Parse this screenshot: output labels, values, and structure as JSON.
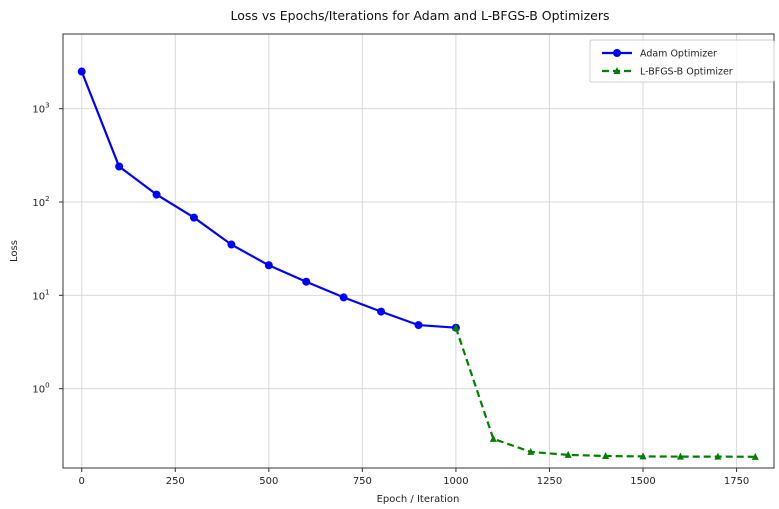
{
  "chart_data": {
    "type": "line",
    "title": "Loss vs Epochs/Iterations for Adam and L-BFGS-B Optimizers",
    "xlabel": "Epoch / Iteration",
    "ylabel": "Loss",
    "xlim": [
      -50,
      1850
    ],
    "ylim_log10": [
      -0.85,
      3.8
    ],
    "yscale": "log",
    "grid": true,
    "legend_position": "top-right",
    "x_ticks": [
      0,
      250,
      500,
      750,
      1000,
      1250,
      1500,
      1750
    ],
    "x_tick_labels": [
      "0",
      "250",
      "500",
      "750",
      "1000",
      "1250",
      "1500",
      "1750"
    ],
    "y_ticks_log10": [
      0,
      1,
      2,
      3
    ],
    "y_tick_labels": [
      {
        "base": "10",
        "exp": "0"
      },
      {
        "base": "10",
        "exp": "1"
      },
      {
        "base": "10",
        "exp": "2"
      },
      {
        "base": "10",
        "exp": "3"
      }
    ],
    "series": [
      {
        "name": "Adam Optimizer",
        "color": "#0000ff",
        "line_style": "solid",
        "marker": "circle",
        "x": [
          0,
          100,
          200,
          300,
          400,
          500,
          600,
          700,
          800,
          900,
          1000
        ],
        "y": [
          2500,
          240,
          120,
          68,
          35,
          21,
          14,
          9.5,
          6.7,
          4.8,
          4.5
        ]
      },
      {
        "name": "L-BFGS-B Optimizer",
        "color": "#008000",
        "line_style": "dashed",
        "marker": "triangle-up",
        "x": [
          1000,
          1100,
          1200,
          1300,
          1400,
          1500,
          1600,
          1700,
          1800
        ],
        "y": [
          4.5,
          0.29,
          0.21,
          0.195,
          0.19,
          0.188,
          0.187,
          0.187,
          0.186
        ]
      }
    ]
  }
}
